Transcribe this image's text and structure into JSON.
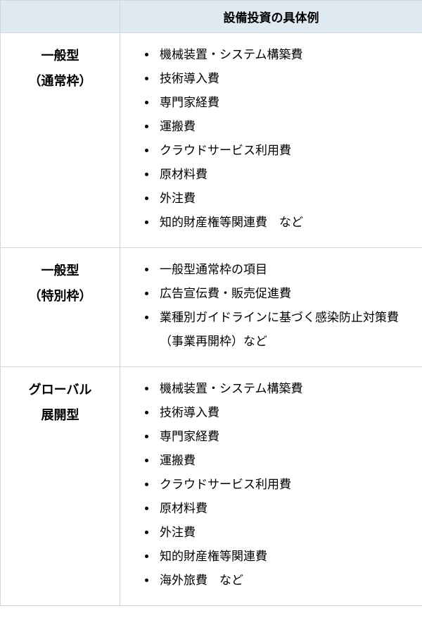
{
  "colors": {
    "header_bg": "#dfe9f1",
    "border": "#cfd8df",
    "text": "#000000",
    "bg": "#ffffff"
  },
  "header": {
    "col1": "",
    "col2": "設備投資の具体例"
  },
  "rows": [
    {
      "label_line1": "一般型",
      "label_line2": "（通常枠）",
      "items": [
        "機械装置・システム構築費",
        "技術導入費",
        "専門家経費",
        "運搬費",
        "クラウドサービス利用費",
        "原材料費",
        "外注費",
        "知的財産権等関連費　など"
      ]
    },
    {
      "label_line1": "一般型",
      "label_line2": "（特別枠）",
      "items": [
        "一般型通常枠の項目",
        "広告宣伝費・販売促進費",
        "業種別ガイドラインに基づく感染防止対策費（事業再開枠）など"
      ]
    },
    {
      "label_line1": "グローバル",
      "label_line2": "展開型",
      "items": [
        "機械装置・システム構築費",
        "技術導入費",
        "専門家経費",
        "運搬費",
        "クラウドサービス利用費",
        "原材料費",
        "外注費",
        "知的財産権等関連費",
        "海外旅費　など"
      ]
    }
  ]
}
